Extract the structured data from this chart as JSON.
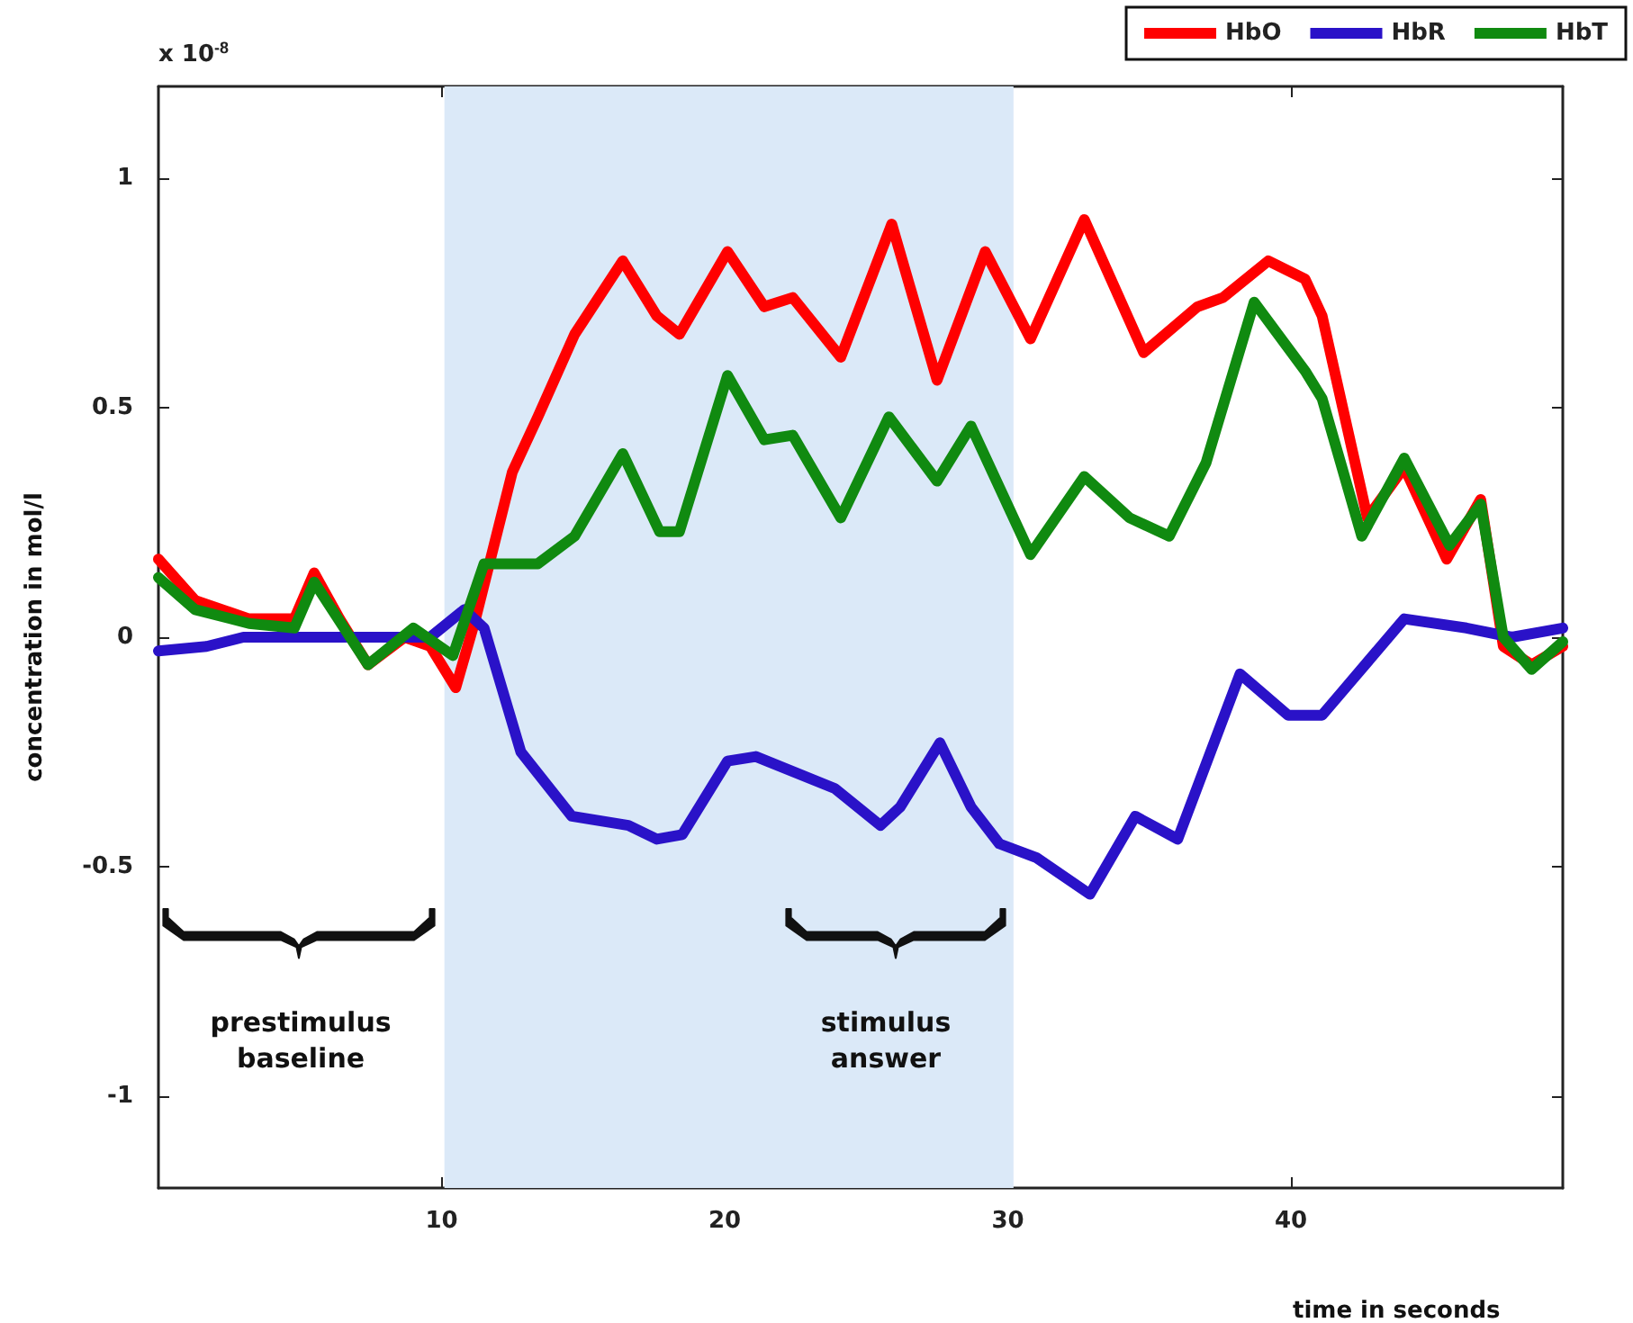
{
  "chart_data": {
    "type": "line",
    "xlabel": "time in seconds",
    "ylabel": "concentration in mol/l",
    "annotations": [
      "x 10$^{-8}$",
      "prestimulus baseline",
      "stimulus answer"
    ],
    "xlim": [
      0,
      49.6
    ],
    "ylim": [
      -1.2,
      1.2
    ],
    "xticks": [
      10,
      20,
      30,
      40
    ],
    "yticks": [
      -1,
      -0.5,
      0,
      0.5,
      1
    ],
    "grid": false,
    "legend": "top right",
    "marker": "none",
    "line_style": "solid",
    "bands": [
      {
        "axis": "x",
        "from": 10.1,
        "to": 30.2,
        "color": "#dbe9f8"
      }
    ],
    "series": [
      {
        "name": "HbO",
        "color": "#ff0000",
        "x": [
          0,
          1.3,
          3.2,
          4.8,
          5.5,
          6.4,
          7.4,
          8.7,
          9.6,
          10.5,
          11.2,
          12.5,
          13.4,
          14.7,
          16.4,
          17.6,
          18.4,
          20.1,
          21.4,
          22.4,
          24.1,
          25.9,
          27.5,
          29.2,
          30.8,
          32.7,
          34.8,
          36.7,
          37.6,
          39.2,
          40.5,
          41.1,
          42.7,
          44.0,
          45.5,
          46.7,
          47.5,
          48.5,
          49.6
        ],
        "values": [
          0.17,
          0.08,
          0.04,
          0.04,
          0.14,
          0.04,
          -0.06,
          0.0,
          -0.02,
          -0.11,
          0.04,
          0.36,
          0.48,
          0.66,
          0.82,
          0.7,
          0.66,
          0.84,
          0.72,
          0.74,
          0.61,
          0.9,
          0.56,
          0.84,
          0.65,
          0.91,
          0.62,
          0.72,
          0.74,
          0.82,
          0.78,
          0.7,
          0.26,
          0.37,
          0.17,
          0.3,
          -0.02,
          -0.06,
          -0.02
        ]
      },
      {
        "name": "HbR",
        "color": "#2a12c8",
        "x": [
          0,
          1.7,
          3.0,
          5.2,
          7.1,
          9.6,
          10.8,
          11.5,
          12.8,
          14.6,
          16.6,
          17.6,
          18.5,
          20.1,
          21.1,
          23.9,
          25.5,
          26.2,
          27.6,
          28.7,
          29.7,
          31.0,
          32.9,
          34.5,
          36.0,
          38.2,
          39.9,
          41.1,
          44.0,
          46.2,
          47.8,
          49.6
        ],
        "values": [
          -0.03,
          -0.02,
          0.0,
          0.0,
          0.0,
          0.0,
          0.06,
          0.02,
          -0.25,
          -0.39,
          -0.41,
          -0.44,
          -0.43,
          -0.27,
          -0.26,
          -0.33,
          -0.41,
          -0.37,
          -0.23,
          -0.37,
          -0.45,
          -0.48,
          -0.56,
          -0.39,
          -0.44,
          -0.08,
          -0.17,
          -0.17,
          0.04,
          0.02,
          0.0,
          0.02
        ]
      },
      {
        "name": "HbT",
        "color": "#108a10",
        "x": [
          0,
          1.3,
          3.2,
          4.8,
          5.5,
          7.4,
          9.0,
          10.4,
          11.5,
          13.4,
          14.7,
          16.4,
          17.7,
          18.4,
          20.1,
          21.4,
          22.4,
          24.1,
          25.8,
          27.5,
          28.7,
          30.8,
          32.7,
          34.3,
          35.7,
          37.0,
          38.7,
          40.5,
          41.1,
          42.5,
          44.0,
          45.6,
          46.7,
          47.5,
          48.5,
          49.6
        ],
        "values": [
          0.13,
          0.06,
          0.03,
          0.02,
          0.12,
          -0.06,
          0.02,
          -0.04,
          0.16,
          0.16,
          0.22,
          0.4,
          0.23,
          0.23,
          0.57,
          0.43,
          0.44,
          0.26,
          0.48,
          0.34,
          0.46,
          0.18,
          0.35,
          0.26,
          0.22,
          0.38,
          0.73,
          0.58,
          0.52,
          0.22,
          0.39,
          0.2,
          0.29,
          0.0,
          -0.07,
          -0.01
        ]
      }
    ]
  }
}
